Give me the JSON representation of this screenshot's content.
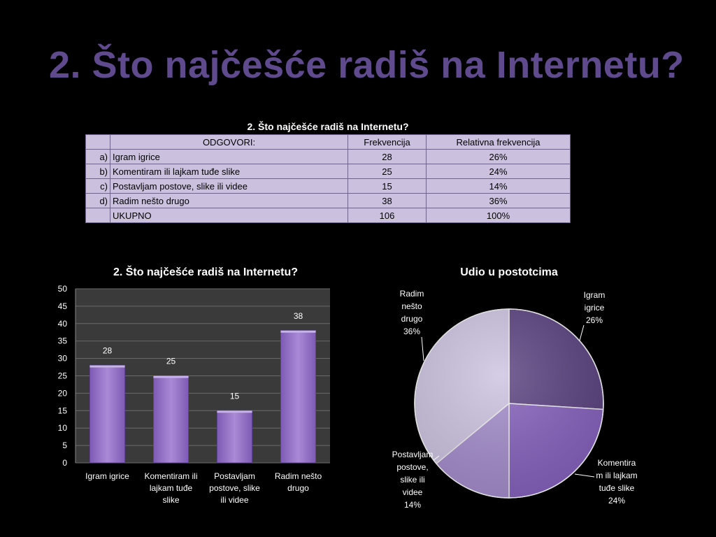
{
  "slide": {
    "title": "2. Što najčešće radiš na Internetu?"
  },
  "table": {
    "caption": "2. Što najčešće radiš na Internetu?",
    "headers": [
      "",
      "ODGOVORI:",
      "Frekvencija",
      "Relativna frekvencija"
    ],
    "rows": [
      [
        "a)",
        "Igram igrice",
        "28",
        "26%"
      ],
      [
        "b)",
        "Komentiram ili lajkam tuđe slike",
        "25",
        "24%"
      ],
      [
        "c)",
        "Postavljam postove, slike ili videe",
        "15",
        "14%"
      ],
      [
        "d)",
        "Radim nešto drugo",
        "38",
        "36%"
      ],
      [
        "",
        "UKUPNO",
        "106",
        "100%"
      ]
    ]
  },
  "chart_data": [
    {
      "type": "bar",
      "title": "2. Što najčešće radiš na Internetu?",
      "categories": [
        "Igram igrice",
        "Komentiram ili lajkam tuđe slike",
        "Postavljam postove, slike ili videe",
        "Radim nešto drugo"
      ],
      "category_lines": [
        [
          "Igram igrice"
        ],
        [
          "Komentiram ili",
          "lajkam tuđe",
          "slike"
        ],
        [
          "Postavljam",
          "postove, slike",
          "ili videe"
        ],
        [
          "Radim nešto",
          "drugo"
        ]
      ],
      "values": [
        28,
        25,
        15,
        38
      ],
      "data_labels": [
        "28",
        "25",
        "15",
        "38"
      ],
      "ylim": [
        0,
        50
      ],
      "yticks": [
        "0",
        "5",
        "10",
        "15",
        "20",
        "25",
        "30",
        "35",
        "40",
        "45",
        "50"
      ],
      "xlabel": "",
      "ylabel": "",
      "grid": true,
      "colors": {
        "bar": "#7e5bb4",
        "bar_light": "#a98ad6",
        "plot_bg": "#3a3a3a",
        "grid": "#6a6a6a"
      }
    },
    {
      "type": "pie",
      "title": "Udio u postotcima",
      "categories": [
        "Igram igrice",
        "Komentiram ili lajkam tuđe slike",
        "Postavljam postove, slike ili videe",
        "Radim nešto drugo"
      ],
      "values": [
        26,
        24,
        14,
        36
      ],
      "labels": [
        [
          "Igram",
          "igrice",
          "26%"
        ],
        [
          "Komentira",
          "m ili lajkam",
          "tuđe slike",
          "24%"
        ],
        [
          "Postavljam",
          "postove,",
          "slike ili",
          "videe",
          "14%"
        ],
        [
          "Radim",
          "nešto",
          "drugo",
          "36%"
        ]
      ],
      "colors": [
        "#5a427f",
        "#8561bd",
        "#a48dcc",
        "#cdc3e0"
      ]
    }
  ]
}
